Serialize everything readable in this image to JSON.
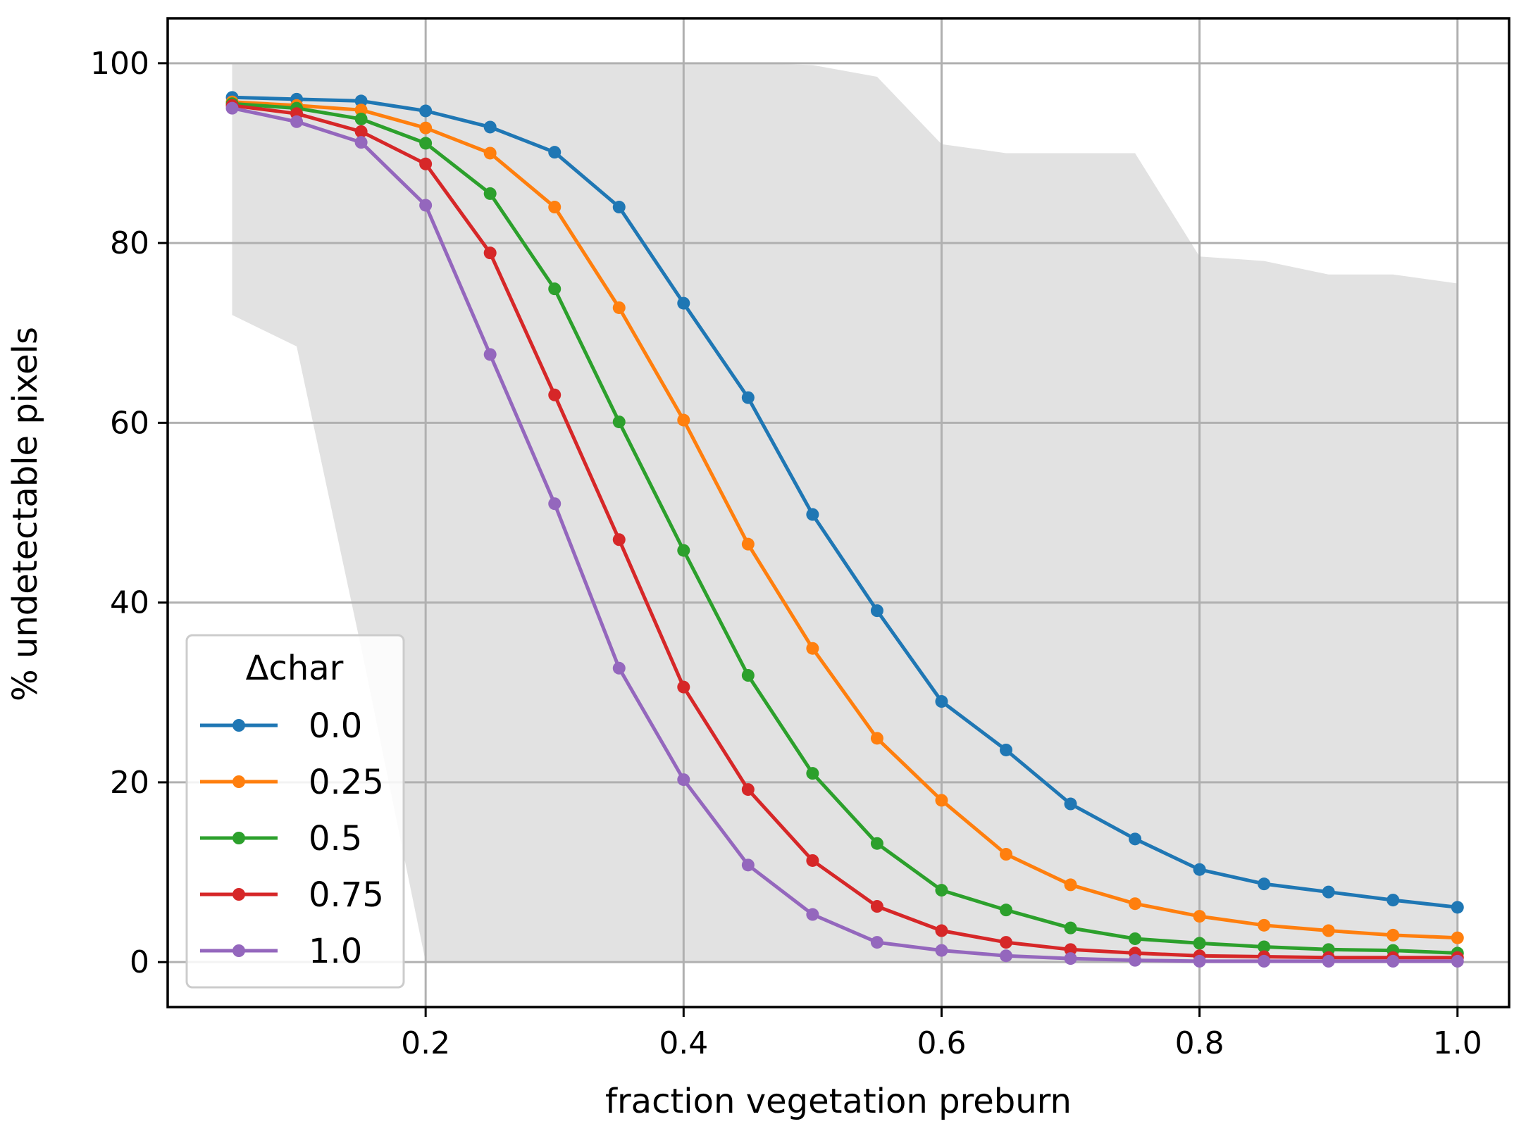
{
  "chart_data": {
    "type": "line",
    "title": "",
    "xlabel": "fraction vegetation preburn",
    "ylabel": "% undetectable pixels",
    "xlim": [
      0.0,
      1.04
    ],
    "ylim": [
      -5,
      105
    ],
    "xticks": [
      0.2,
      0.4,
      0.6,
      0.8,
      1.0
    ],
    "xtick_labels": [
      "0.2",
      "0.4",
      "0.6",
      "0.8",
      "1.0"
    ],
    "yticks": [
      0,
      20,
      40,
      60,
      80,
      100
    ],
    "ytick_labels": [
      "0",
      "20",
      "40",
      "60",
      "80",
      "100"
    ],
    "grid": true,
    "legend": {
      "title": "Δchar",
      "location": "lower-left"
    },
    "x": [
      0.05,
      0.1,
      0.15,
      0.2,
      0.25,
      0.3,
      0.35,
      0.4,
      0.45,
      0.5,
      0.55,
      0.6,
      0.65,
      0.7,
      0.75,
      0.8,
      0.85,
      0.9,
      0.95,
      1.0
    ],
    "band": {
      "color": "#e2e2e2",
      "upper": [
        100,
        100,
        100,
        100,
        100,
        100,
        100,
        100,
        100,
        99.8,
        98.5,
        91.0,
        90.0,
        90.0,
        90.0,
        78.5,
        78.0,
        76.5,
        76.5,
        75.5
      ],
      "lower": [
        72.0,
        68.5,
        35.0,
        0,
        0,
        0,
        0,
        0,
        0,
        0,
        0,
        0,
        0,
        0,
        0,
        0,
        0,
        0,
        0,
        0
      ]
    },
    "series": [
      {
        "name": "0.0",
        "color": "#1f77b4",
        "values": [
          96.2,
          96.0,
          95.8,
          94.7,
          92.9,
          90.1,
          84.0,
          73.3,
          62.8,
          49.8,
          39.1,
          29.0,
          23.6,
          17.6,
          13.7,
          10.3,
          8.7,
          7.8,
          6.9,
          6.1
        ]
      },
      {
        "name": "0.25",
        "color": "#ff7f0e",
        "values": [
          95.7,
          95.3,
          94.8,
          92.8,
          90.0,
          84.0,
          72.8,
          60.3,
          46.5,
          34.9,
          24.9,
          18.0,
          12.0,
          8.6,
          6.5,
          5.1,
          4.1,
          3.5,
          3.0,
          2.7
        ]
      },
      {
        "name": "0.5",
        "color": "#2ca02c",
        "values": [
          95.5,
          95.0,
          93.8,
          91.1,
          85.5,
          74.9,
          60.1,
          45.8,
          31.9,
          21.0,
          13.2,
          8.0,
          5.8,
          3.8,
          2.6,
          2.1,
          1.7,
          1.4,
          1.3,
          1.0
        ]
      },
      {
        "name": "0.75",
        "color": "#d62728",
        "values": [
          95.3,
          94.4,
          92.4,
          88.8,
          78.9,
          63.1,
          47.0,
          30.6,
          19.2,
          11.3,
          6.2,
          3.5,
          2.2,
          1.4,
          1.0,
          0.7,
          0.6,
          0.5,
          0.5,
          0.5
        ]
      },
      {
        "name": "1.0",
        "color": "#9467bd",
        "values": [
          95.0,
          93.5,
          91.2,
          84.2,
          67.6,
          51.0,
          32.7,
          20.3,
          10.8,
          5.3,
          2.2,
          1.3,
          0.7,
          0.4,
          0.2,
          0.1,
          0.1,
          0.1,
          0.1,
          0.1
        ]
      }
    ]
  }
}
